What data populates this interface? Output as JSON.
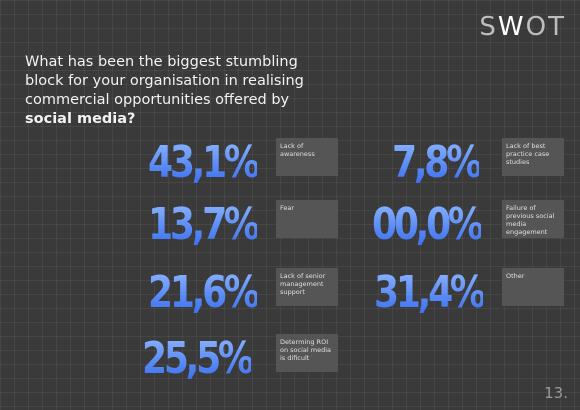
{
  "logo": {
    "s": "S",
    "w": "W",
    "o": "O",
    "t": "T"
  },
  "question": {
    "line1": "What has been the biggest stumbling",
    "line2": "block for your organisation in realising",
    "line3": "commercial opportunities offered by",
    "bold": "social media?"
  },
  "stats": [
    {
      "value": "43,1%",
      "label": "Lack of awareness"
    },
    {
      "value": "13,7%",
      "label": "Fear"
    },
    {
      "value": "21,6%",
      "label": "Lack of senior management support"
    },
    {
      "value": "25,5%",
      "label": "Determing ROI on social media is dificult"
    },
    {
      "value": "7,8%",
      "label": "Lack of best practice case studies"
    },
    {
      "value": "00,0%",
      "label": "Failure of previous social media engagement"
    },
    {
      "value": "31,4%",
      "label": "Other"
    }
  ],
  "page_number": "13."
}
